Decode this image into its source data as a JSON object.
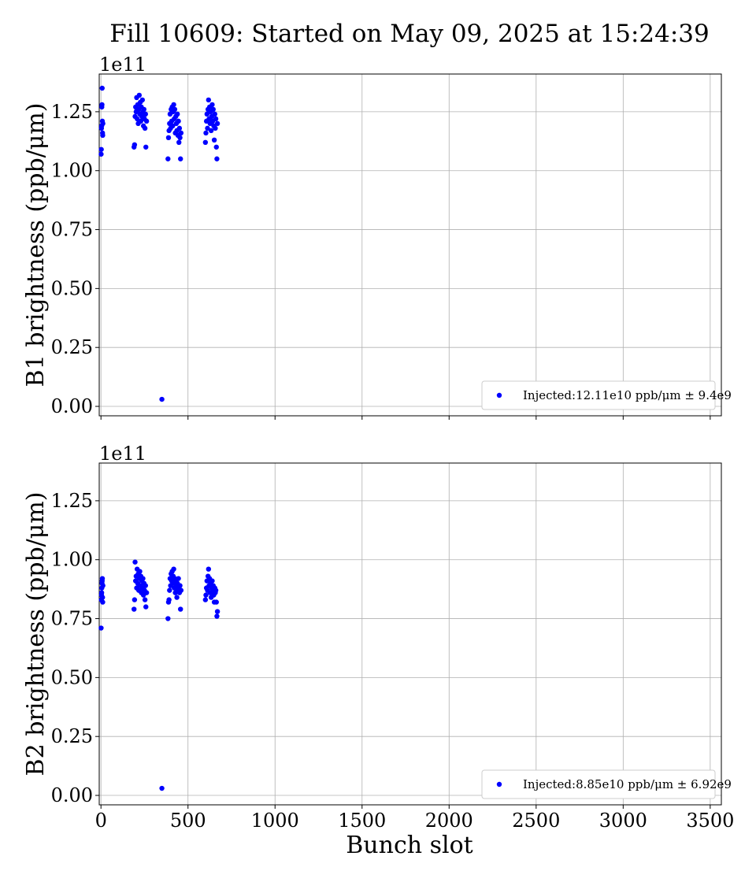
{
  "chart_data": {
    "type": "scatter",
    "title": "Fill 10609: Started on May 09, 2025 at 15:24:39",
    "xlabel": "Bunch slot",
    "xlim": [
      -10,
      3564
    ],
    "xticks": [
      0,
      500,
      1000,
      1500,
      2000,
      2500,
      3000,
      3500
    ],
    "xtick_labels": [
      "0",
      "500",
      "1000",
      "1500",
      "2000",
      "2500",
      "3000",
      "3500"
    ],
    "grid": true,
    "panels": [
      {
        "ylabel": "B1 brightness (ppb/μm)",
        "offset_label": "1e11",
        "ylim": [
          -0.04,
          1.41
        ],
        "yticks": [
          0,
          0.25,
          0.5,
          0.75,
          1.0,
          1.25
        ],
        "ytick_labels": [
          "0.00",
          "0.25",
          "0.50",
          "0.75",
          "1.00",
          "1.25"
        ],
        "color": "#0000ff",
        "legend": {
          "label": "Injected:12.11e10 ppb/μm ± 9.4e9",
          "placement": "lower-right"
        },
        "points": [
          [
            1,
            1.07
          ],
          [
            2,
            1.09
          ],
          [
            3,
            1.18
          ],
          [
            4,
            1.19
          ],
          [
            5,
            1.27
          ],
          [
            6,
            1.28
          ],
          [
            7,
            1.35
          ],
          [
            8,
            1.21
          ],
          [
            9,
            1.16
          ],
          [
            10,
            1.15
          ],
          [
            11,
            1.2
          ],
          [
            190,
            1.1
          ],
          [
            193,
            1.11
          ],
          [
            196,
            1.23
          ],
          [
            199,
            1.27
          ],
          [
            202,
            1.25
          ],
          [
            205,
            1.31
          ],
          [
            208,
            1.22
          ],
          [
            211,
            1.28
          ],
          [
            214,
            1.2
          ],
          [
            217,
            1.26
          ],
          [
            220,
            1.32
          ],
          [
            223,
            1.24
          ],
          [
            226,
            1.29
          ],
          [
            229,
            1.21
          ],
          [
            232,
            1.27
          ],
          [
            235,
            1.23
          ],
          [
            238,
            1.3
          ],
          [
            241,
            1.25
          ],
          [
            244,
            1.19
          ],
          [
            247,
            1.26
          ],
          [
            250,
            1.22
          ],
          [
            253,
            1.18
          ],
          [
            256,
            1.24
          ],
          [
            258,
            1.1
          ],
          [
            262,
            1.21
          ],
          [
            350,
            0.03
          ],
          [
            385,
            1.05
          ],
          [
            388,
            1.14
          ],
          [
            391,
            1.17
          ],
          [
            394,
            1.2
          ],
          [
            397,
            1.24
          ],
          [
            400,
            1.18
          ],
          [
            403,
            1.26
          ],
          [
            406,
            1.21
          ],
          [
            409,
            1.27
          ],
          [
            412,
            1.19
          ],
          [
            415,
            1.25
          ],
          [
            418,
            1.28
          ],
          [
            421,
            1.22
          ],
          [
            424,
            1.26
          ],
          [
            427,
            1.16
          ],
          [
            430,
            1.23
          ],
          [
            433,
            1.2
          ],
          [
            436,
            1.17
          ],
          [
            439,
            1.24
          ],
          [
            442,
            1.15
          ],
          [
            445,
            1.21
          ],
          [
            448,
            1.12
          ],
          [
            451,
            1.18
          ],
          [
            454,
            1.14
          ],
          [
            457,
            1.05
          ],
          [
            460,
            1.16
          ],
          [
            600,
            1.12
          ],
          [
            603,
            1.16
          ],
          [
            606,
            1.21
          ],
          [
            609,
            1.24
          ],
          [
            612,
            1.18
          ],
          [
            615,
            1.26
          ],
          [
            618,
            1.3
          ],
          [
            621,
            1.22
          ],
          [
            624,
            1.27
          ],
          [
            627,
            1.2
          ],
          [
            630,
            1.25
          ],
          [
            633,
            1.17
          ],
          [
            636,
            1.23
          ],
          [
            639,
            1.28
          ],
          [
            642,
            1.21
          ],
          [
            645,
            1.26
          ],
          [
            648,
            1.19
          ],
          [
            651,
            1.13
          ],
          [
            654,
            1.24
          ],
          [
            657,
            1.18
          ],
          [
            660,
            1.22
          ],
          [
            663,
            1.1
          ],
          [
            666,
            1.05
          ],
          [
            669,
            1.2
          ]
        ]
      },
      {
        "ylabel": "B2 brightness (ppb/μm)",
        "offset_label": "1e11",
        "ylim": [
          -0.04,
          1.41
        ],
        "yticks": [
          0,
          0.25,
          0.5,
          0.75,
          1.0,
          1.25
        ],
        "ytick_labels": [
          "0.00",
          "0.25",
          "0.50",
          "0.75",
          "1.00",
          "1.25"
        ],
        "color": "#0000ff",
        "legend": {
          "label": "Injected:8.85e10 ppb/μm ± 6.92e9",
          "placement": "lower-right"
        },
        "points": [
          [
            1,
            0.71
          ],
          [
            2,
            0.83
          ],
          [
            3,
            0.85
          ],
          [
            4,
            0.86
          ],
          [
            5,
            0.88
          ],
          [
            6,
            0.9
          ],
          [
            7,
            0.91
          ],
          [
            8,
            0.92
          ],
          [
            9,
            0.84
          ],
          [
            10,
            0.82
          ],
          [
            11,
            0.89
          ],
          [
            190,
            0.79
          ],
          [
            193,
            0.83
          ],
          [
            196,
            0.99
          ],
          [
            199,
            0.91
          ],
          [
            202,
            0.93
          ],
          [
            205,
            0.88
          ],
          [
            208,
            0.96
          ],
          [
            211,
            0.9
          ],
          [
            214,
            0.94
          ],
          [
            217,
            0.87
          ],
          [
            220,
            0.92
          ],
          [
            223,
            0.95
          ],
          [
            226,
            0.89
          ],
          [
            229,
            0.93
          ],
          [
            232,
            0.86
          ],
          [
            235,
            0.91
          ],
          [
            238,
            0.88
          ],
          [
            241,
            0.92
          ],
          [
            244,
            0.85
          ],
          [
            247,
            0.9
          ],
          [
            250,
            0.87
          ],
          [
            253,
            0.83
          ],
          [
            256,
            0.89
          ],
          [
            258,
            0.8
          ],
          [
            262,
            0.86
          ],
          [
            350,
            0.03
          ],
          [
            385,
            0.75
          ],
          [
            388,
            0.82
          ],
          [
            391,
            0.83
          ],
          [
            394,
            0.87
          ],
          [
            397,
            0.92
          ],
          [
            400,
            0.89
          ],
          [
            403,
            0.94
          ],
          [
            406,
            0.91
          ],
          [
            409,
            0.95
          ],
          [
            412,
            0.9
          ],
          [
            415,
            0.93
          ],
          [
            418,
            0.96
          ],
          [
            421,
            0.88
          ],
          [
            424,
            0.92
          ],
          [
            427,
            0.86
          ],
          [
            430,
            0.91
          ],
          [
            433,
            0.89
          ],
          [
            436,
            0.84
          ],
          [
            439,
            0.9
          ],
          [
            442,
            0.87
          ],
          [
            445,
            0.92
          ],
          [
            448,
            0.88
          ],
          [
            451,
            0.86
          ],
          [
            454,
            0.89
          ],
          [
            457,
            0.79
          ],
          [
            460,
            0.87
          ],
          [
            600,
            0.83
          ],
          [
            603,
            0.85
          ],
          [
            606,
            0.88
          ],
          [
            609,
            0.91
          ],
          [
            612,
            0.87
          ],
          [
            615,
            0.93
          ],
          [
            618,
            0.96
          ],
          [
            621,
            0.89
          ],
          [
            624,
            0.92
          ],
          [
            627,
            0.86
          ],
          [
            630,
            0.9
          ],
          [
            633,
            0.84
          ],
          [
            636,
            0.88
          ],
          [
            639,
            0.91
          ],
          [
            642,
            0.87
          ],
          [
            645,
            0.89
          ],
          [
            648,
            0.85
          ],
          [
            651,
            0.82
          ],
          [
            654,
            0.88
          ],
          [
            657,
            0.86
          ],
          [
            660,
            0.87
          ],
          [
            663,
            0.82
          ],
          [
            666,
            0.76
          ],
          [
            669,
            0.78
          ]
        ]
      }
    ]
  }
}
